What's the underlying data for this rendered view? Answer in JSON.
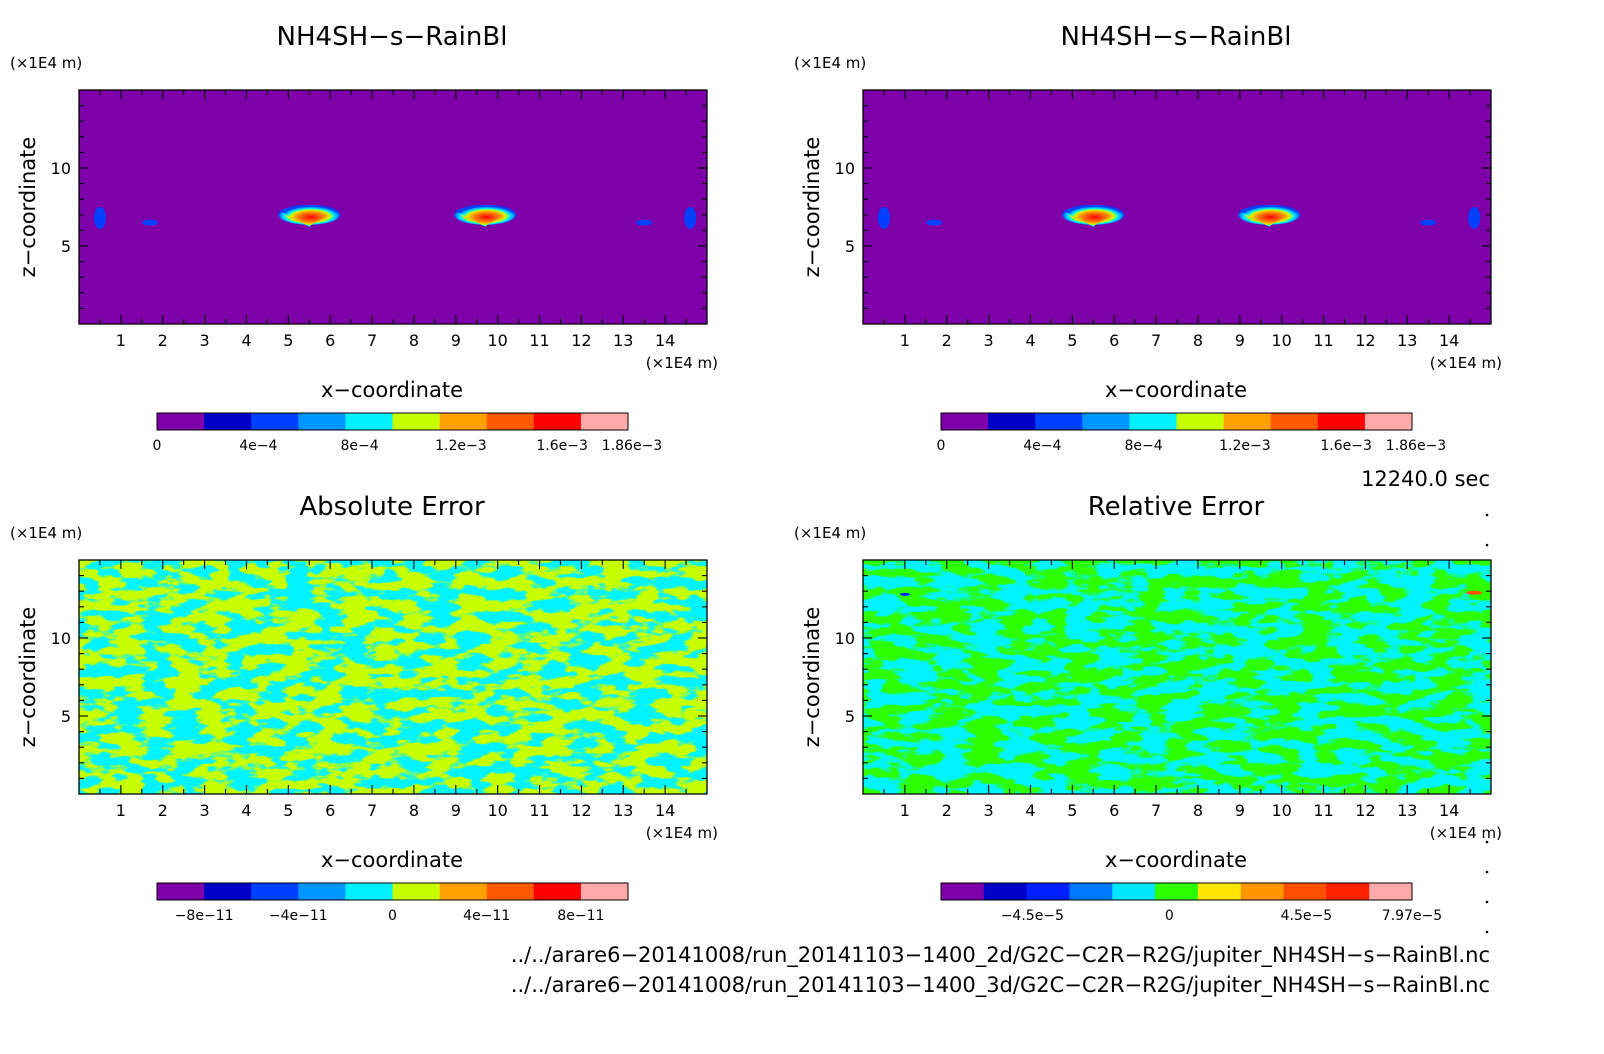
{
  "chart_data": [
    {
      "type": "heatmap",
      "title": "NH4SH−s−RainBl",
      "xlabel": "x−coordinate",
      "ylabel": "z−coordinate",
      "x_unit": "(×1E4 m)",
      "y_unit": "(×1E4 m)",
      "xlim": [
        0,
        15
      ],
      "ylim": [
        0,
        15
      ],
      "x_ticks": [
        "1",
        "2",
        "3",
        "4",
        "5",
        "6",
        "7",
        "8",
        "9",
        "10",
        "11",
        "12",
        "13",
        "14"
      ],
      "y_ticks": [
        "5",
        "10"
      ],
      "background_color": "#7d00a8",
      "features": [
        {
          "kind": "cloud",
          "x": 5.5,
          "z": 7.0
        },
        {
          "kind": "cloud",
          "x": 9.7,
          "z": 7.0
        },
        {
          "kind": "patch",
          "x": 0.5,
          "z": 6.8
        },
        {
          "kind": "patch",
          "x": 1.7,
          "z": 6.5
        },
        {
          "kind": "patch",
          "x": 13.5,
          "z": 6.5
        },
        {
          "kind": "patch",
          "x": 14.6,
          "z": 6.8
        }
      ],
      "colorbar": {
        "colors": [
          "#7d00a8",
          "#0000c8",
          "#0040ff",
          "#0096ff",
          "#00f0ff",
          "#c8ff00",
          "#ffa000",
          "#ff5a00",
          "#ff0000",
          "#ffaaaa"
        ],
        "labels": [
          "0",
          "4e−4",
          "8e−4",
          "1.2e−3",
          "1.6e−3",
          "1.86e−3"
        ],
        "label_values": [
          0,
          0.0004,
          0.0008,
          0.0012,
          0.0016,
          0.00186
        ],
        "min": 0,
        "max": 0.00186
      }
    },
    {
      "type": "heatmap",
      "title": "NH4SH−s−RainBl",
      "xlabel": "x−coordinate",
      "ylabel": "z−coordinate",
      "x_unit": "(×1E4 m)",
      "y_unit": "(×1E4 m)",
      "xlim": [
        0,
        15
      ],
      "ylim": [
        0,
        15
      ],
      "x_ticks": [
        "1",
        "2",
        "3",
        "4",
        "5",
        "6",
        "7",
        "8",
        "9",
        "10",
        "11",
        "12",
        "13",
        "14"
      ],
      "y_ticks": [
        "5",
        "10"
      ],
      "background_color": "#7d00a8",
      "features": [
        {
          "kind": "cloud",
          "x": 5.5,
          "z": 7.0
        },
        {
          "kind": "cloud",
          "x": 9.7,
          "z": 7.0
        },
        {
          "kind": "patch",
          "x": 0.5,
          "z": 6.8
        },
        {
          "kind": "patch",
          "x": 1.7,
          "z": 6.5
        },
        {
          "kind": "patch",
          "x": 13.5,
          "z": 6.5
        },
        {
          "kind": "patch",
          "x": 14.6,
          "z": 6.8
        }
      ],
      "colorbar": {
        "colors": [
          "#7d00a8",
          "#0000c8",
          "#0040ff",
          "#0096ff",
          "#00f0ff",
          "#c8ff00",
          "#ffa000",
          "#ff5a00",
          "#ff0000",
          "#ffaaaa"
        ],
        "labels": [
          "0",
          "4e−4",
          "8e−4",
          "1.2e−3",
          "1.6e−3",
          "1.86e−3"
        ],
        "label_values": [
          0,
          0.0004,
          0.0008,
          0.0012,
          0.0016,
          0.00186
        ],
        "min": 0,
        "max": 0.00186
      }
    },
    {
      "type": "heatmap",
      "title": "Absolute Error",
      "xlabel": "x−coordinate",
      "ylabel": "z−coordinate",
      "x_unit": "(×1E4 m)",
      "y_unit": "(×1E4 m)",
      "xlim": [
        0,
        15
      ],
      "ylim": [
        0,
        15
      ],
      "x_ticks": [
        "1",
        "2",
        "3",
        "4",
        "5",
        "6",
        "7",
        "8",
        "9",
        "10",
        "11",
        "12",
        "13",
        "14"
      ],
      "y_ticks": [
        "5",
        "10"
      ],
      "background_color": "#c8ff00",
      "noise_color": "#00e6ff",
      "noise_zmin": 5.5,
      "colorbar": {
        "colors": [
          "#7d00a8",
          "#0000c8",
          "#0040ff",
          "#0096ff",
          "#00f0ff",
          "#c8ff00",
          "#ffa000",
          "#ff5a00",
          "#ff0000",
          "#ffaaaa"
        ],
        "labels": [
          "−8e−11",
          "−4e−11",
          "0",
          "4e−11",
          "8e−11"
        ],
        "label_values": [
          -8e-11,
          -4e-11,
          0,
          4e-11,
          8e-11
        ],
        "min": -1e-10,
        "max": 1e-10
      }
    },
    {
      "type": "heatmap",
      "title": "Relative Error",
      "xlabel": "x−coordinate",
      "ylabel": "z−coordinate",
      "x_unit": "(×1E4 m)",
      "y_unit": "(×1E4 m)",
      "xlim": [
        0,
        15
      ],
      "ylim": [
        0,
        15
      ],
      "x_ticks": [
        "1",
        "2",
        "3",
        "4",
        "5",
        "6",
        "7",
        "8",
        "9",
        "10",
        "11",
        "12",
        "13",
        "14"
      ],
      "y_ticks": [
        "5",
        "10"
      ],
      "background_color": "#2dff00",
      "noise_color": "#00e6ff",
      "noise_zmin": 5.5,
      "colorbar": {
        "colors": [
          "#7d00a8",
          "#0000c8",
          "#0020ff",
          "#0078ff",
          "#00e6ff",
          "#2dff00",
          "#ffe600",
          "#ff9600",
          "#ff5000",
          "#ff2000",
          "#ffaaaa"
        ],
        "labels": [
          "−4.5e−5",
          "0",
          "4.5e−5",
          "7.97e−5"
        ],
        "label_values": [
          -4.5e-05,
          0,
          4.5e-05,
          7.97e-05
        ],
        "min": -7.5e-05,
        "max": 7.97e-05
      }
    }
  ],
  "time_label": "12240.0 sec",
  "footer": {
    "line1": "../../arare6−20141008/run_20141103−1400_2d/G2C−C2R−R2G/jupiter_NH4SH−s−RainBl.nc",
    "line2": "../../arare6−20141008/run_20141103−1400_3d/G2C−C2R−R2G/jupiter_NH4SH−s−RainBl.nc"
  }
}
